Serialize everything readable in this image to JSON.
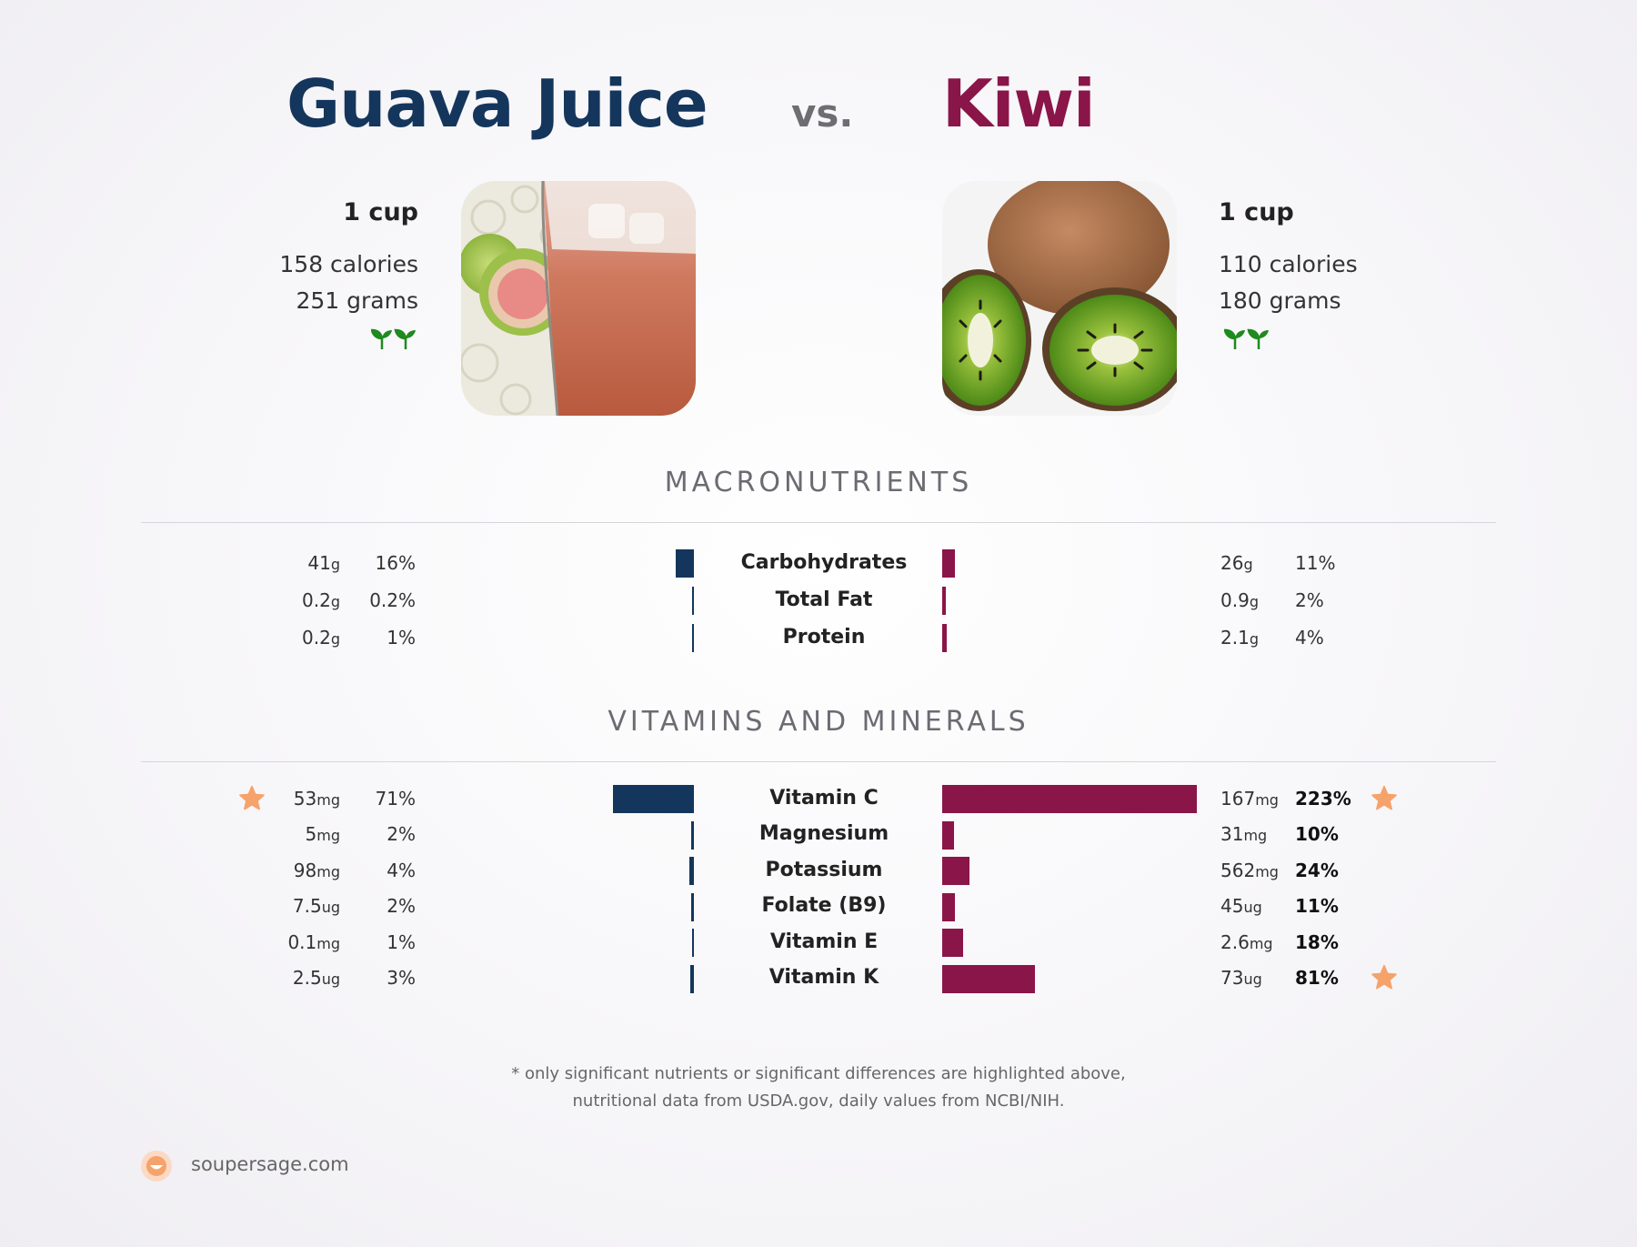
{
  "header": {
    "left_title": "Guava Juice",
    "vs_label": "vs.",
    "right_title": "Kiwi"
  },
  "foods": {
    "left": {
      "serving": "1 cup",
      "calories": "158 calories",
      "weight": "251 grams",
      "icon": "sprout-icon"
    },
    "right": {
      "serving": "1 cup",
      "calories": "110 calories",
      "weight": "180 grams",
      "icon": "sprout-icon"
    }
  },
  "colors": {
    "left": "#14365c",
    "right": "#8a1548",
    "star": "#f5a36b"
  },
  "sections": {
    "macros_title": "MACRONUTRIENTS",
    "vitamins_title": "VITAMINS AND MINERALS"
  },
  "chart_data": [
    {
      "type": "bar",
      "title": "MACRONUTRIENTS",
      "categories": [
        "Carbohydrates",
        "Total Fat",
        "Protein"
      ],
      "series": [
        {
          "name": "Guava Juice",
          "amounts": [
            "41",
            "0.2",
            "0.2"
          ],
          "units": [
            "g",
            "g",
            "g"
          ],
          "pct_labels": [
            "16%",
            "0.2%",
            "1%"
          ],
          "values": [
            16,
            0.2,
            1
          ],
          "highlight": [
            false,
            false,
            false
          ]
        },
        {
          "name": "Kiwi",
          "amounts": [
            "26",
            "0.9",
            "2.1"
          ],
          "units": [
            "g",
            "g",
            "g"
          ],
          "pct_labels": [
            "11%",
            "2%",
            "4%"
          ],
          "values": [
            11,
            2,
            4
          ],
          "highlight": [
            false,
            false,
            false
          ]
        }
      ]
    },
    {
      "type": "bar",
      "title": "VITAMINS AND MINERALS",
      "categories": [
        "Vitamin C",
        "Magnesium",
        "Potassium",
        "Folate (B9)",
        "Vitamin E",
        "Vitamin K"
      ],
      "series": [
        {
          "name": "Guava Juice",
          "amounts": [
            "53",
            "5",
            "98",
            "7.5",
            "0.1",
            "2.5"
          ],
          "units": [
            "mg",
            "mg",
            "mg",
            "ug",
            "mg",
            "ug"
          ],
          "pct_labels": [
            "71%",
            "2%",
            "4%",
            "2%",
            "1%",
            "3%"
          ],
          "values": [
            71,
            2,
            4,
            2,
            1,
            3
          ],
          "highlight": [
            true,
            false,
            false,
            false,
            false,
            false
          ]
        },
        {
          "name": "Kiwi",
          "amounts": [
            "167",
            "31",
            "562",
            "45",
            "2.6",
            "73"
          ],
          "units": [
            "mg",
            "mg",
            "mg",
            "ug",
            "mg",
            "ug"
          ],
          "pct_labels": [
            "223%",
            "10%",
            "24%",
            "11%",
            "18%",
            "81%"
          ],
          "values": [
            223,
            10,
            24,
            11,
            18,
            81
          ],
          "highlight": [
            true,
            false,
            false,
            false,
            false,
            true
          ]
        }
      ]
    }
  ],
  "footer": {
    "note_line1": "* only significant nutrients or significant differences are highlighted above,",
    "note_line2": "nutritional data from USDA.gov, daily values from NCBI/NIH.",
    "brand": "soupersage.com"
  }
}
